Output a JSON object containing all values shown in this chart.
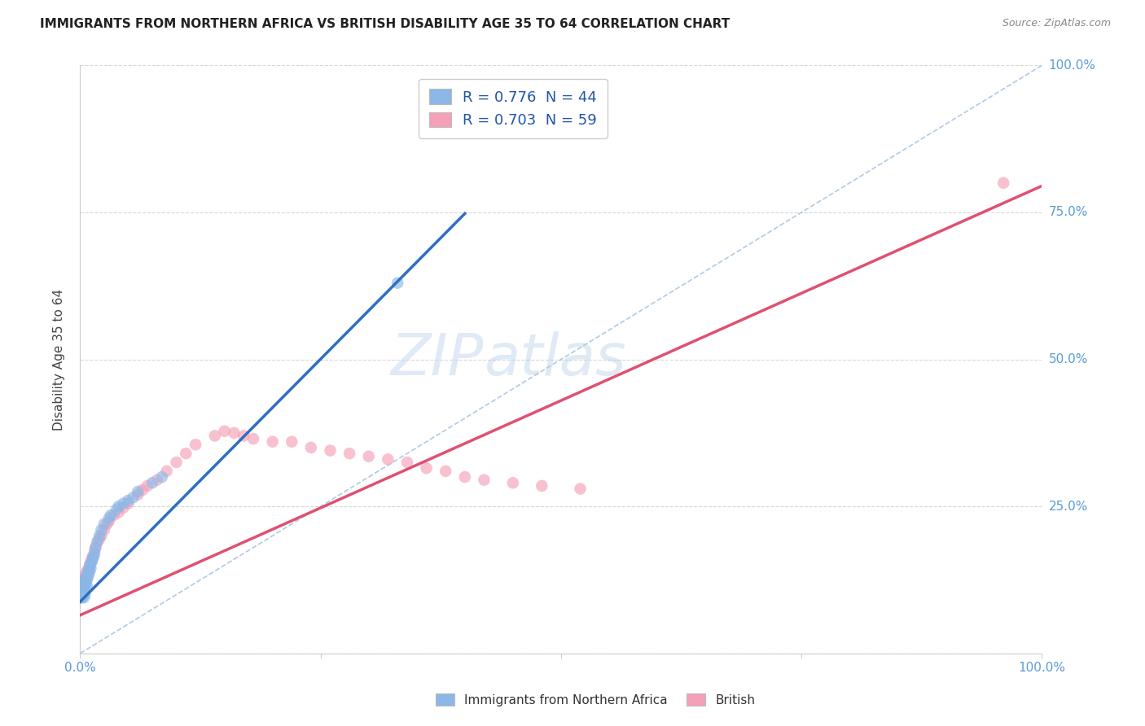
{
  "title": "IMMIGRANTS FROM NORTHERN AFRICA VS BRITISH DISABILITY AGE 35 TO 64 CORRELATION CHART",
  "source": "Source: ZipAtlas.com",
  "ylabel": "Disability Age 35 to 64",
  "xlim": [
    0,
    1.0
  ],
  "ylim": [
    0,
    1.0
  ],
  "xticks": [
    0.0,
    0.25,
    0.5,
    0.75,
    1.0
  ],
  "yticks": [
    0.0,
    0.25,
    0.5,
    0.75,
    1.0
  ],
  "xticklabels": [
    "0.0%",
    "",
    "",
    "",
    "100.0%"
  ],
  "yticklabels": [
    "",
    "25.0%",
    "50.0%",
    "75.0%",
    "100.0%"
  ],
  "blue_color": "#8BB8E8",
  "pink_color": "#F5A0B8",
  "blue_line_color": "#2E6FBF",
  "pink_line_color": "#E05070",
  "dashed_line_color": "#A8C4E0",
  "R_blue": 0.776,
  "N_blue": 44,
  "R_pink": 0.703,
  "N_pink": 59,
  "legend_label_blue": "Immigrants from Northern Africa",
  "legend_label_pink": "British",
  "watermark_zip": "ZIP",
  "watermark_atlas": "atlas",
  "background_color": "#FFFFFF",
  "grid_color": "#D8D8D8",
  "title_color": "#222222",
  "axis_label_color": "#444444",
  "tick_color_right": "#5B9BD5",
  "tick_color_bottom": "#5B9BD5",
  "blue_scatter_x": [
    0.001,
    0.001,
    0.002,
    0.002,
    0.002,
    0.003,
    0.003,
    0.003,
    0.004,
    0.004,
    0.004,
    0.005,
    0.005,
    0.005,
    0.006,
    0.006,
    0.007,
    0.007,
    0.008,
    0.008,
    0.009,
    0.01,
    0.01,
    0.011,
    0.012,
    0.013,
    0.014,
    0.015,
    0.016,
    0.018,
    0.02,
    0.022,
    0.025,
    0.03,
    0.032,
    0.038,
    0.04,
    0.045,
    0.05,
    0.055,
    0.06,
    0.075,
    0.085,
    0.33
  ],
  "blue_scatter_y": [
    0.095,
    0.105,
    0.1,
    0.11,
    0.095,
    0.105,
    0.115,
    0.1,
    0.11,
    0.12,
    0.095,
    0.115,
    0.125,
    0.1,
    0.12,
    0.13,
    0.115,
    0.125,
    0.13,
    0.14,
    0.135,
    0.14,
    0.15,
    0.145,
    0.155,
    0.16,
    0.165,
    0.17,
    0.18,
    0.19,
    0.2,
    0.21,
    0.22,
    0.23,
    0.235,
    0.245,
    0.25,
    0.255,
    0.26,
    0.265,
    0.275,
    0.29,
    0.3,
    0.63
  ],
  "pink_scatter_x": [
    0.001,
    0.002,
    0.003,
    0.003,
    0.004,
    0.004,
    0.005,
    0.005,
    0.006,
    0.006,
    0.007,
    0.007,
    0.008,
    0.009,
    0.01,
    0.011,
    0.012,
    0.013,
    0.015,
    0.016,
    0.018,
    0.02,
    0.022,
    0.025,
    0.028,
    0.03,
    0.035,
    0.04,
    0.045,
    0.05,
    0.06,
    0.065,
    0.07,
    0.08,
    0.09,
    0.1,
    0.11,
    0.12,
    0.14,
    0.15,
    0.16,
    0.17,
    0.18,
    0.2,
    0.22,
    0.24,
    0.26,
    0.28,
    0.3,
    0.32,
    0.34,
    0.36,
    0.38,
    0.4,
    0.42,
    0.45,
    0.48,
    0.52,
    0.96
  ],
  "pink_scatter_y": [
    0.1,
    0.11,
    0.115,
    0.12,
    0.115,
    0.125,
    0.12,
    0.13,
    0.125,
    0.135,
    0.13,
    0.14,
    0.135,
    0.145,
    0.15,
    0.155,
    0.16,
    0.165,
    0.175,
    0.18,
    0.19,
    0.195,
    0.2,
    0.21,
    0.22,
    0.225,
    0.235,
    0.24,
    0.248,
    0.255,
    0.27,
    0.278,
    0.285,
    0.295,
    0.31,
    0.325,
    0.34,
    0.355,
    0.37,
    0.378,
    0.375,
    0.37,
    0.365,
    0.36,
    0.36,
    0.35,
    0.345,
    0.34,
    0.335,
    0.33,
    0.325,
    0.315,
    0.31,
    0.3,
    0.295,
    0.29,
    0.285,
    0.28,
    0.8
  ],
  "blue_intercept": 0.088,
  "blue_slope": 1.65,
  "pink_intercept": 0.065,
  "pink_slope": 0.73
}
